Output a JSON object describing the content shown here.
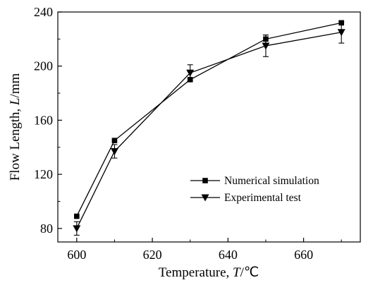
{
  "chart_data": {
    "type": "line",
    "xlabel_main": "Temperature, ",
    "xlabel_var": "T",
    "xlabel_unit": "/℃",
    "ylabel_main": "Flow Length, ",
    "ylabel_var": "L",
    "ylabel_unit": "/mm",
    "xlim": [
      595,
      675
    ],
    "ylim": [
      70,
      240
    ],
    "x_ticks": [
      600,
      620,
      640,
      660
    ],
    "y_ticks": [
      80,
      120,
      160,
      200,
      240
    ],
    "legend_position": "center-right",
    "grid": false,
    "series": [
      {
        "name": "Numerical simulation",
        "marker": "square",
        "color": "#000000",
        "x": [
          600,
          610,
          630,
          650,
          670
        ],
        "y": [
          89,
          145,
          190,
          220,
          232
        ],
        "yerr": [
          0,
          0,
          0,
          3,
          0
        ]
      },
      {
        "name": "Experimental test",
        "marker": "triangle-down",
        "color": "#000000",
        "x": [
          600,
          610,
          630,
          650,
          670
        ],
        "y": [
          80,
          137,
          195,
          215,
          225
        ],
        "yerr": [
          5,
          5,
          6,
          8,
          8
        ]
      }
    ]
  }
}
